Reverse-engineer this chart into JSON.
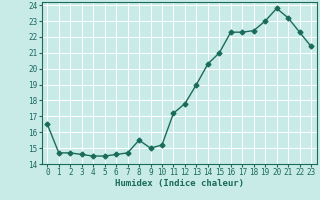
{
  "x": [
    0,
    1,
    2,
    3,
    4,
    5,
    6,
    7,
    8,
    9,
    10,
    11,
    12,
    13,
    14,
    15,
    16,
    17,
    18,
    19,
    20,
    21,
    22,
    23
  ],
  "y": [
    16.5,
    14.7,
    14.7,
    14.6,
    14.5,
    14.5,
    14.6,
    14.7,
    15.5,
    15.0,
    15.2,
    17.2,
    17.8,
    19.0,
    20.3,
    21.0,
    22.3,
    22.3,
    22.4,
    23.0,
    23.8,
    23.2,
    22.3,
    21.4
  ],
  "line_color": "#1a6b5a",
  "marker": "D",
  "markersize": 2.5,
  "linewidth": 1.0,
  "background_color": "#c8ebe8",
  "grid_color": "#ffffff",
  "xlabel": "Humidex (Indice chaleur)",
  "xlim": [
    -0.5,
    23.5
  ],
  "ylim": [
    14,
    24.2
  ],
  "yticks": [
    14,
    15,
    16,
    17,
    18,
    19,
    20,
    21,
    22,
    23,
    24
  ],
  "xticks": [
    0,
    1,
    2,
    3,
    4,
    5,
    6,
    7,
    8,
    9,
    10,
    11,
    12,
    13,
    14,
    15,
    16,
    17,
    18,
    19,
    20,
    21,
    22,
    23
  ],
  "xlabel_fontsize": 6.5,
  "tick_fontsize": 5.5,
  "tick_color": "#1a6b5a",
  "spine_color": "#1a6b5a"
}
